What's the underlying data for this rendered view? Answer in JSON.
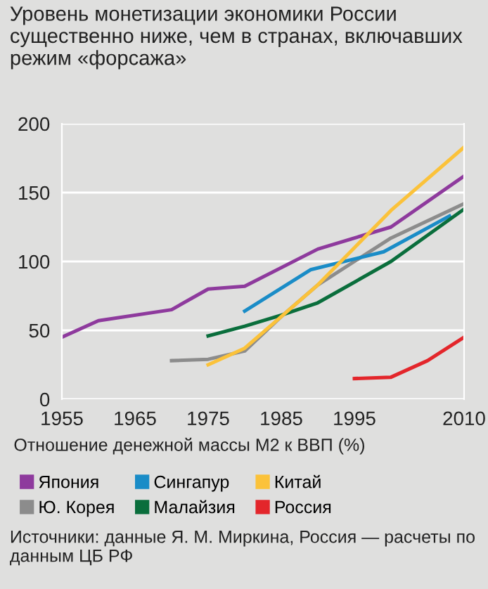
{
  "chart_data": {
    "type": "line",
    "title": "Уровень монетизации экономики России существенно ниже, чем в странах, включавших режим «форсажа»",
    "xlabel": "Отношение денежной массы М2 к ВВП (%)",
    "xlim": [
      1955,
      2010
    ],
    "xticks": [
      1955,
      1965,
      1975,
      1985,
      1995,
      2010
    ],
    "ylim": [
      0,
      200
    ],
    "yticks": [
      0,
      50,
      100,
      150,
      200
    ],
    "grid": "y",
    "legend": "bottom",
    "series": [
      {
        "name": "Япония",
        "color": "#8e3a9d",
        "x": [
          1955,
          1960,
          1970,
          1975,
          1980,
          1990,
          2000,
          2010
        ],
        "values": [
          45,
          57,
          65,
          80,
          82,
          109,
          125,
          162
        ]
      },
      {
        "name": "Ю. Корея",
        "color": "#8c8c8c",
        "x": [
          1970,
          1975,
          1980,
          1985,
          1990,
          2000,
          2010
        ],
        "values": [
          28,
          29,
          35,
          60,
          83,
          117,
          142
        ]
      },
      {
        "name": "Сингапур",
        "color": "#1a8cc7",
        "x": [
          1980,
          1989,
          1999,
          2008
        ],
        "values": [
          64,
          94,
          107,
          133
        ]
      },
      {
        "name": "Малайзия",
        "color": "#0a6e3c",
        "x": [
          1975,
          1980,
          1985,
          1990,
          2000,
          2010
        ],
        "values": [
          46,
          53,
          61,
          70,
          100,
          138
        ]
      },
      {
        "name": "Китай",
        "color": "#fbc23a",
        "x": [
          1975,
          1980,
          1985,
          1990,
          1995,
          2000,
          2010
        ],
        "values": [
          25,
          37,
          60,
          83,
          110,
          137,
          183
        ]
      },
      {
        "name": "Россия",
        "color": "#e3262b",
        "x": [
          1995,
          2000,
          2005,
          2010
        ],
        "values": [
          15,
          16,
          28,
          45
        ]
      }
    ],
    "annotations": [
      "Источники: данные Я. М. Миркина, Россия — расчеты по данным ЦБ РФ"
    ]
  }
}
